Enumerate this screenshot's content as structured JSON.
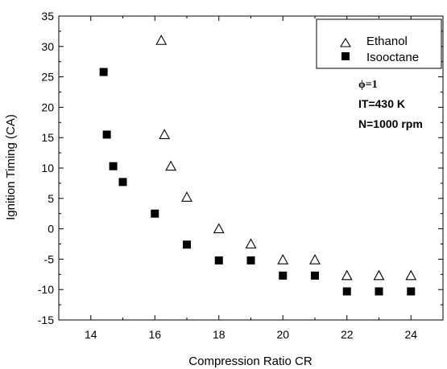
{
  "chart_data": {
    "type": "scatter",
    "xlabel": "Compression Ratio CR",
    "ylabel": "Ignition Timing (CA)",
    "xlim": [
      13,
      25
    ],
    "ylim": [
      -15,
      35
    ],
    "x_ticks": [
      14,
      16,
      18,
      20,
      22,
      24
    ],
    "y_ticks": [
      -15,
      -10,
      -5,
      0,
      5,
      10,
      15,
      20,
      25,
      30,
      35
    ],
    "grid": false,
    "legend_position": "top-right",
    "series": [
      {
        "name": "Ethanol",
        "marker": "open-triangle",
        "color": "#000000",
        "x": [
          16.2,
          16.3,
          16.5,
          17,
          18,
          19,
          20,
          21,
          22,
          23,
          24
        ],
        "y": [
          31,
          15.5,
          10.3,
          5.2,
          0,
          -2.5,
          -5.1,
          -5.1,
          -7.7,
          -7.7,
          -7.7
        ]
      },
      {
        "name": "Isooctane",
        "marker": "filled-square",
        "color": "#000000",
        "x": [
          14.4,
          14.5,
          14.7,
          15,
          16,
          17,
          18,
          19,
          20,
          21,
          22,
          23,
          24
        ],
        "y": [
          25.8,
          15.5,
          10.3,
          7.7,
          2.5,
          -2.6,
          -5.2,
          -5.2,
          -7.7,
          -7.7,
          -10.3,
          -10.3,
          -10.3
        ]
      }
    ],
    "annotations": [
      "ϕ=1",
      "IT=430 K",
      "N=1000 rpm"
    ]
  }
}
